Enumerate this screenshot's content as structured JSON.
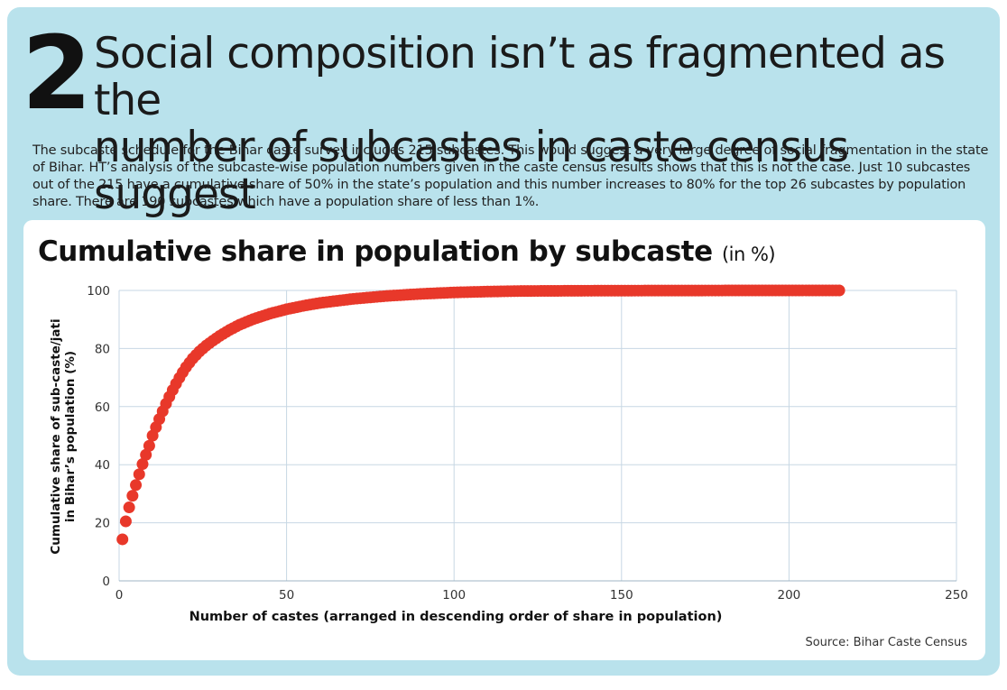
{
  "header": {
    "number": "2",
    "title_line1": "Social composition isn’t as fragmented as the",
    "title_line2": "number of subcastes in caste census suggest",
    "intro": "The subcaste schedule for the Bihar caste survey includes 215 subcastes. This would suggest a very large degree of social fragmentation in the state of Bihar. HT’s analysis of the subcaste-wise population numbers given in the caste census results shows that this is not the case. Just 10 subcastes out of the 215 have a cumulative share of 50% in the state’s population and this number increases to 80% for the top 26 subcastes by population share. There are 190 subcastes which have a population share of less than 1%."
  },
  "chart_data": {
    "type": "scatter",
    "title": "Cumulative share in population by subcaste",
    "title_unit": "(in %)",
    "xlabel": "Number of castes (arranged in descending order of share in population)",
    "ylabel_line1": "Cumulative share of sub-caste/jati",
    "ylabel_line2": "in Bihar’s population (%)",
    "xlim": [
      0,
      250
    ],
    "ylim": [
      0,
      100
    ],
    "xticks": [
      0,
      50,
      100,
      150,
      200,
      250
    ],
    "yticks": [
      0,
      20,
      40,
      60,
      80,
      100
    ],
    "grid": true,
    "legend": "none",
    "color": "#e8382a",
    "x": [
      1,
      2,
      3,
      4,
      5,
      6,
      7,
      8,
      9,
      10,
      11,
      12,
      13,
      14,
      15,
      16,
      17,
      18,
      19,
      20,
      22,
      24,
      26,
      28,
      30,
      33,
      36,
      40,
      45,
      50,
      55,
      60,
      70,
      80,
      90,
      100,
      110,
      120,
      140,
      160,
      180,
      200,
      215
    ],
    "y": [
      14.3,
      20.5,
      25.3,
      29.3,
      33.0,
      36.7,
      40.2,
      43.4,
      46.5,
      50.0,
      52.9,
      55.7,
      58.4,
      61.0,
      63.4,
      65.7,
      67.9,
      69.9,
      71.8,
      73.6,
      76.6,
      79.0,
      81.0,
      82.7,
      84.3,
      86.4,
      88.2,
      90.1,
      92.0,
      93.5,
      94.7,
      95.7,
      97.1,
      98.1,
      98.8,
      99.3,
      99.6,
      99.8,
      99.9,
      99.95,
      99.98,
      100.0,
      100.0
    ]
  },
  "footer": {
    "source": "Source: Bihar Caste Census"
  }
}
